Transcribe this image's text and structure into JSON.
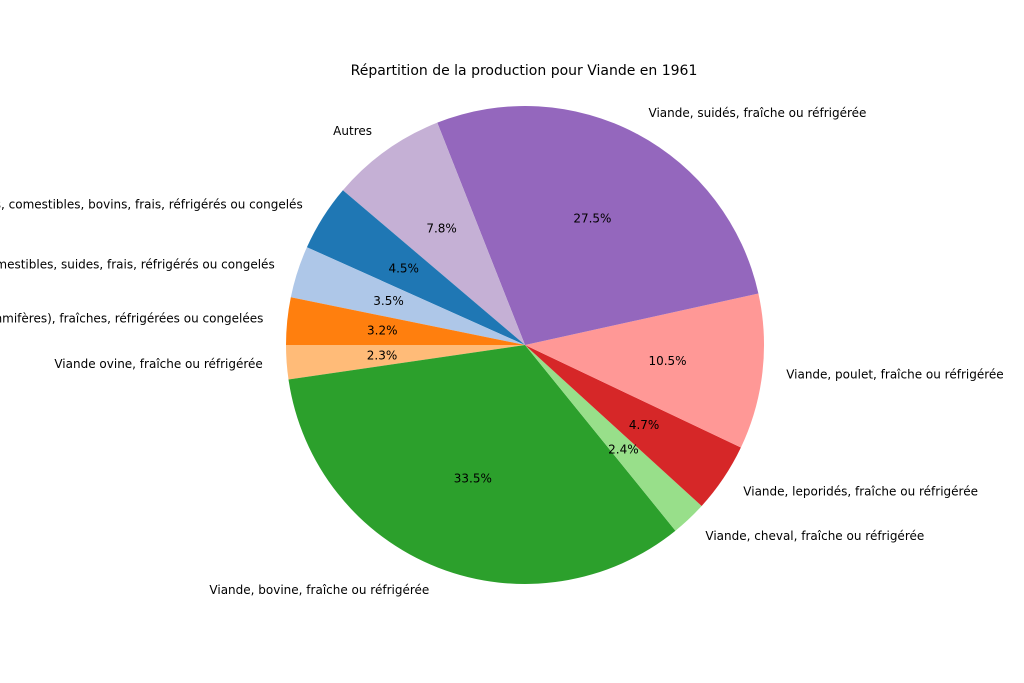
{
  "chart_data": {
    "type": "pie",
    "title": "Répartition de la production pour Viande en 1961",
    "start_angle_deg": 180,
    "direction": "counterclockwise",
    "slices": [
      {
        "label": "Viande ovine, fraîche ou réfrigérée",
        "value": 2.3,
        "pct_label": "2.3%",
        "color": "#ffbb78"
      },
      {
        "label": "Viande, bovine, fraîche ou réfrigérée",
        "value": 33.5,
        "pct_label": "33.5%",
        "color": "#2ca02c"
      },
      {
        "label": "Viande, cheval, fraîche ou réfrigérée",
        "value": 2.4,
        "pct_label": "2.4%",
        "color": "#98df8a"
      },
      {
        "label": "Viande, leporidés, fraîche ou réfrigérée",
        "value": 4.7,
        "pct_label": "4.7%",
        "color": "#d62728"
      },
      {
        "label": "Viande, poulet, fraîche ou réfrigérée",
        "value": 10.5,
        "pct_label": "10.5%",
        "color": "#ff9896"
      },
      {
        "label": "Viande, suidés, fraîche ou réfrigérée",
        "value": 27.5,
        "pct_label": "27.5%",
        "color": "#9467bd"
      },
      {
        "label": "Autres",
        "value": 7.8,
        "pct_label": "7.8%",
        "color": "#c5b0d5"
      },
      {
        "label": "Abats, comestibles, bovins, frais, réfrigérés ou congelés",
        "value": 4.5,
        "pct_label": "4.5%",
        "color": "#1f77b4"
      },
      {
        "label": "Abats, comestibles, suides, frais, réfrigérés ou congelés",
        "value": 3.5,
        "pct_label": "3.5%",
        "color": "#aec7e8"
      },
      {
        "label": "Viandes (mammifères), fraîches, réfrigérées ou congelées",
        "value": 3.2,
        "pct_label": "3.2%",
        "color": "#ff7f0e"
      }
    ]
  }
}
